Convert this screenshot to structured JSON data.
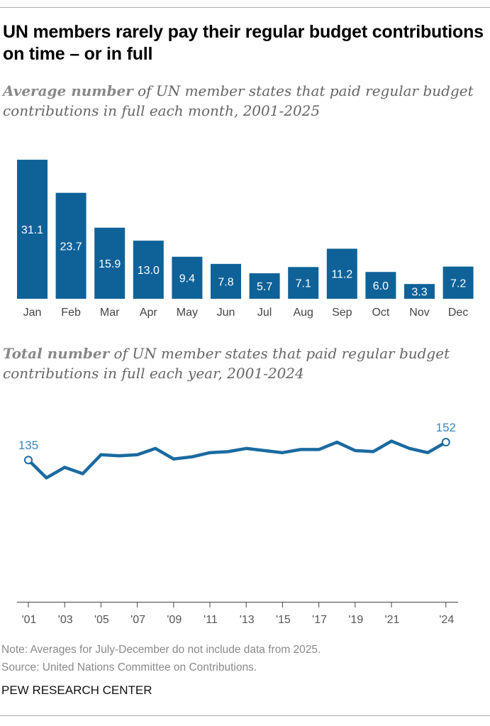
{
  "title": "UN members rarely pay their regular budget contributions on time – or in full",
  "subtitle1": {
    "bold": "Average number",
    "rest": " of UN member states that paid regular budget contributions in full each month, 2001-2025"
  },
  "subtitle2": {
    "bold": "Total number",
    "rest": " of UN member states that paid regular budget contributions in full each year, 2001-2024"
  },
  "note": "Note: Averages for July-December do not include data from 2025.",
  "source": "Source: United Nations Committee on Contributions.",
  "brand": "PEW RESEARCH CENTER",
  "colors": {
    "bar": "#0f6298",
    "line": "#1a6aa0",
    "label": "#3a86bb"
  },
  "chart_data": [
    {
      "type": "bar",
      "categories": [
        "Jan",
        "Feb",
        "Mar",
        "Apr",
        "May",
        "Jun",
        "Jul",
        "Aug",
        "Sep",
        "Oct",
        "Nov",
        "Dec"
      ],
      "values": [
        31.1,
        23.7,
        15.9,
        13.0,
        9.4,
        7.8,
        5.7,
        7.1,
        11.2,
        6.0,
        3.3,
        7.2
      ],
      "value_labels": [
        "31.1",
        "23.7",
        "15.9",
        "13.0",
        "9.4",
        "7.8",
        "5.7",
        "7.1",
        "11.2",
        "6.0",
        "3.3",
        "7.2"
      ],
      "grid": false
    },
    {
      "type": "line",
      "x": [
        2001,
        2002,
        2003,
        2004,
        2005,
        2006,
        2007,
        2008,
        2009,
        2010,
        2011,
        2012,
        2013,
        2014,
        2015,
        2016,
        2017,
        2018,
        2019,
        2020,
        2021,
        2022,
        2023,
        2024
      ],
      "values": [
        135,
        118,
        128,
        122,
        140,
        139,
        140,
        146,
        136,
        138,
        142,
        143,
        146,
        144,
        142,
        145,
        145,
        152,
        144,
        143,
        153,
        146,
        142,
        152
      ],
      "ylim": [
        0,
        160
      ],
      "x_tick_values": [
        2001,
        2003,
        2005,
        2007,
        2009,
        2011,
        2013,
        2015,
        2017,
        2019,
        2021,
        2024
      ],
      "x_tick_labels": [
        "'01",
        "'03",
        "'05",
        "'07",
        "'09",
        "'11",
        "'13",
        "'15",
        "'17",
        "'19",
        "'21",
        "'24"
      ],
      "point_labels": [
        {
          "year": 2001,
          "label": "135"
        },
        {
          "year": 2024,
          "label": "152"
        }
      ],
      "grid": false
    }
  ]
}
